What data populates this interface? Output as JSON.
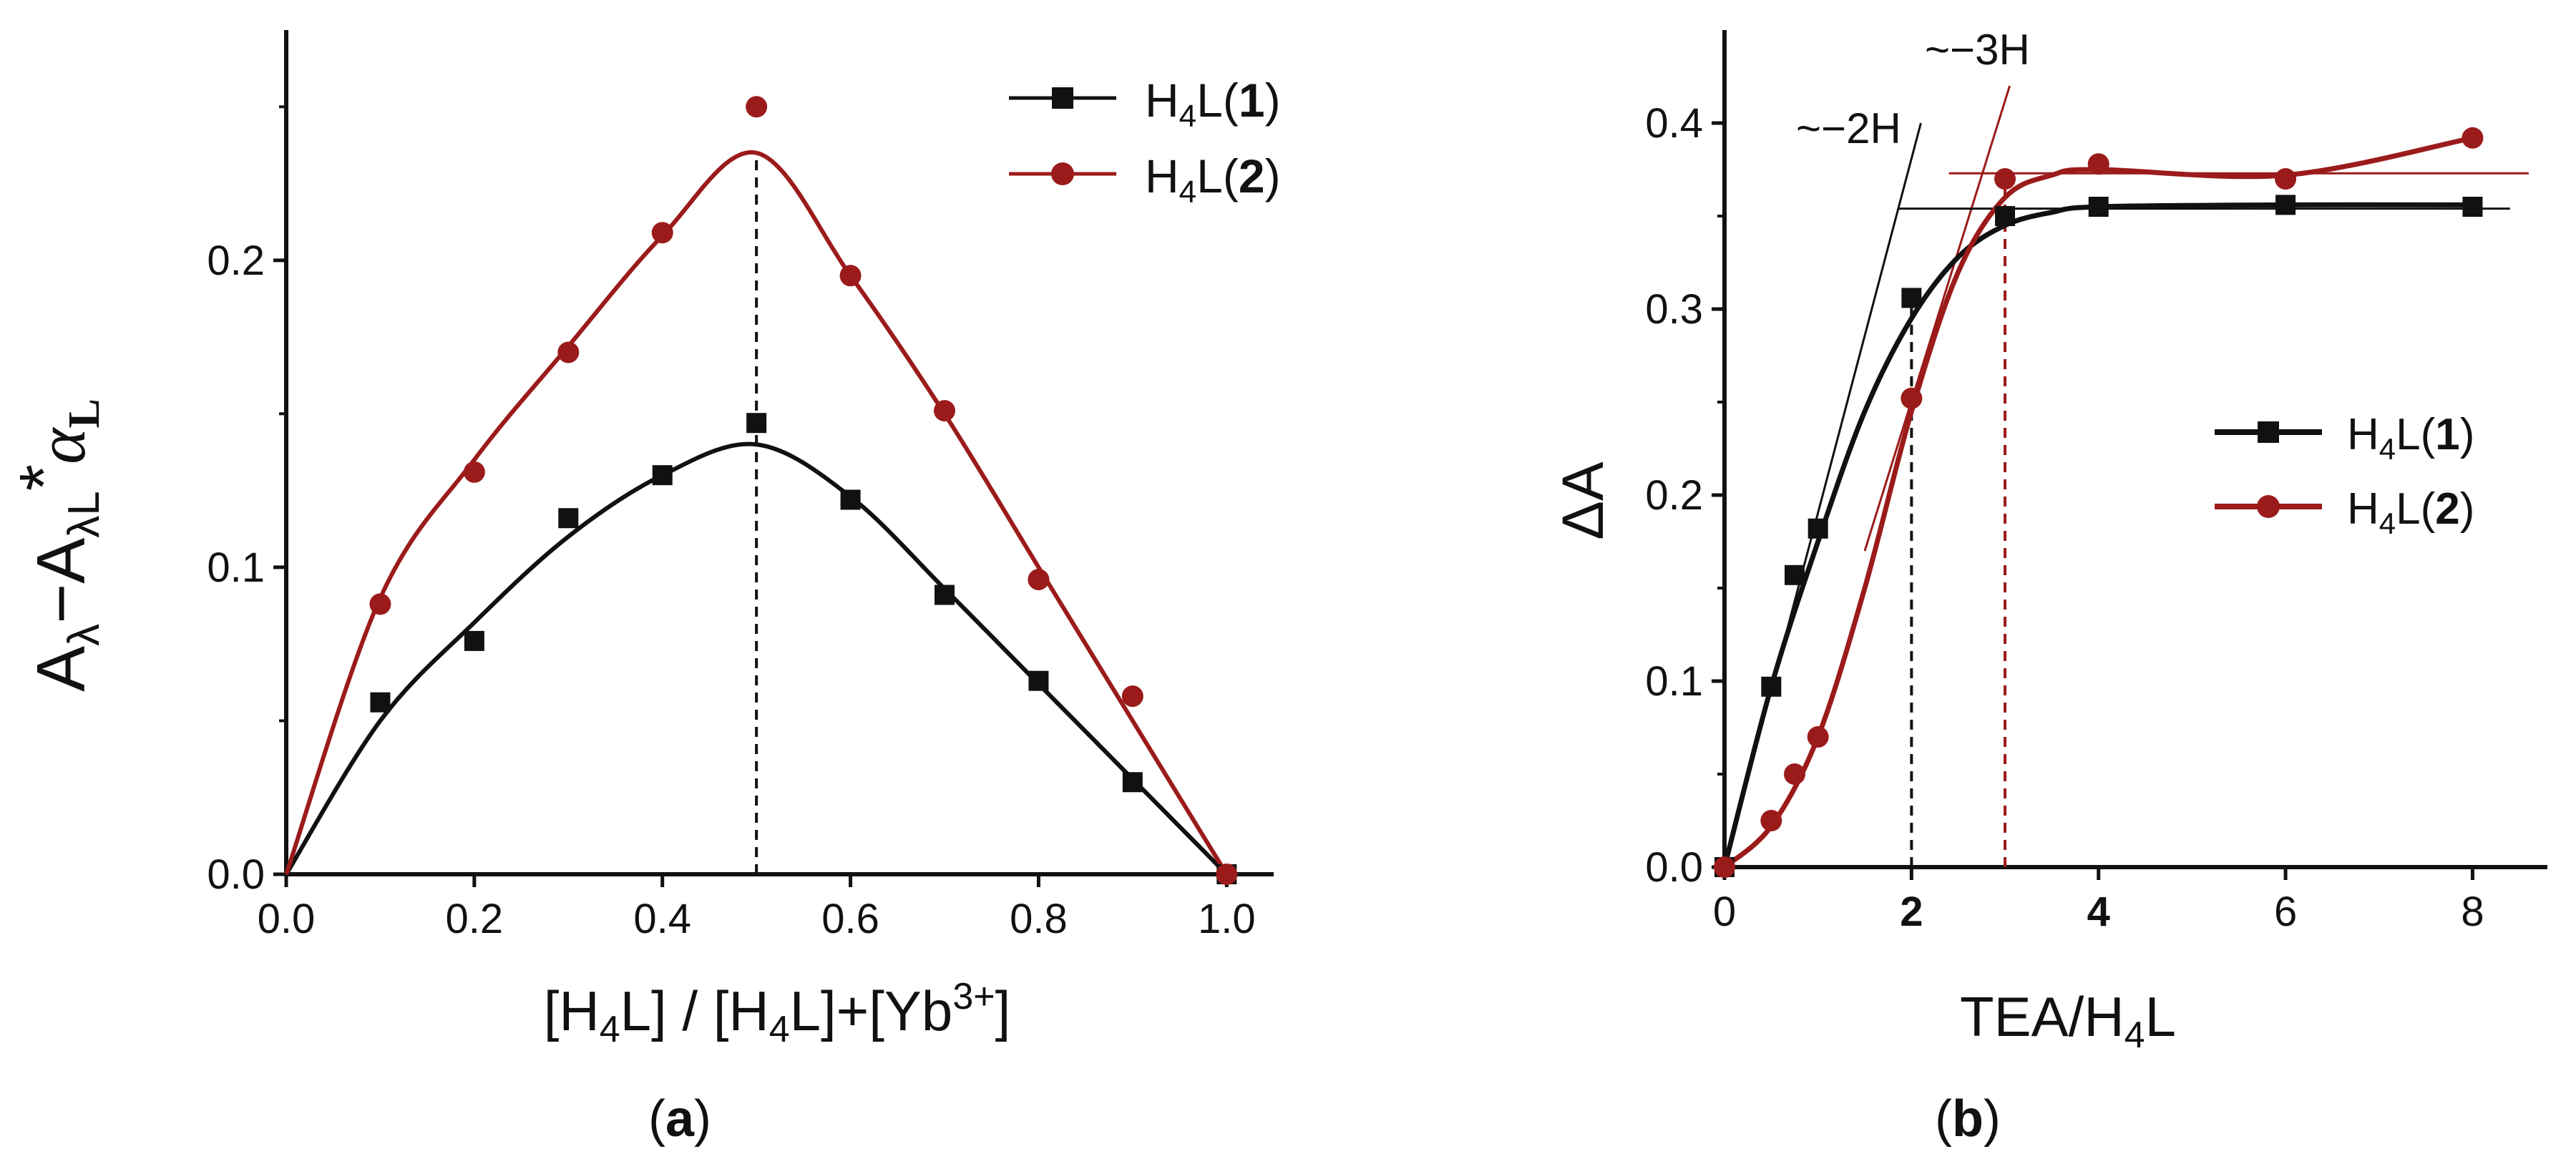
{
  "colors": {
    "series1": "#111111",
    "series2": "#9b1b1b",
    "axis": "#111111"
  },
  "panel_labels": {
    "a": "a",
    "b": "b"
  },
  "chart_data": [
    {
      "type": "scatter",
      "panel": "a",
      "xlabel_parts": {
        "p1": "[H",
        "p2": "4",
        "p3": "L] / [H",
        "p4": "4",
        "p5": "L]+[Yb",
        "p6": "3+",
        "p7": "]"
      },
      "ylabel_parts": {
        "p1": "A",
        "p2": "λ",
        "p3": "−A",
        "p4": "λL",
        "p5": "*",
        "p6": "α",
        "p7": "L"
      },
      "xlim": [
        0,
        1.05
      ],
      "ylim": [
        0,
        0.275
      ],
      "xticks": [
        "0.0",
        "0.2",
        "0.4",
        "0.6",
        "0.8",
        "1.0"
      ],
      "yticks": [
        "0.0",
        "0.1",
        "0.2"
      ],
      "legend_position": "top-right",
      "annotations": [
        {
          "type": "dashed-vertical",
          "x": 0.5
        }
      ],
      "series": [
        {
          "name_parts": {
            "p1": "H",
            "p2": "4",
            "p3": "L(",
            "p4": "1",
            "p5": ")"
          },
          "marker": "square",
          "x": [
            0.1,
            0.2,
            0.3,
            0.4,
            0.5,
            0.6,
            0.7,
            0.8,
            0.9,
            1.0
          ],
          "y": [
            0.056,
            0.076,
            0.116,
            0.13,
            0.147,
            0.122,
            0.091,
            0.063,
            0.03,
            0.0
          ],
          "fit": [
            [
              0,
              0
            ],
            [
              0.1,
              0.05
            ],
            [
              0.2,
              0.082
            ],
            [
              0.3,
              0.11
            ],
            [
              0.4,
              0.13
            ],
            [
              0.5,
              0.14
            ],
            [
              0.6,
              0.123
            ],
            [
              0.7,
              0.093
            ],
            [
              0.8,
              0.062
            ],
            [
              0.9,
              0.031
            ],
            [
              1.0,
              0.0
            ]
          ]
        },
        {
          "name_parts": {
            "p1": "H",
            "p2": "4",
            "p3": "L(",
            "p4": "2",
            "p5": ")"
          },
          "marker": "circle",
          "x": [
            0.1,
            0.2,
            0.3,
            0.4,
            0.5,
            0.6,
            0.7,
            0.8,
            0.9,
            1.0
          ],
          "y": [
            0.088,
            0.131,
            0.17,
            0.209,
            0.25,
            0.195,
            0.151,
            0.096,
            0.058,
            0.0
          ],
          "fit": [
            [
              0,
              0
            ],
            [
              0.1,
              0.09
            ],
            [
              0.2,
              0.135
            ],
            [
              0.3,
              0.172
            ],
            [
              0.4,
              0.208
            ],
            [
              0.5,
              0.235
            ],
            [
              0.6,
              0.195
            ],
            [
              0.7,
              0.15
            ],
            [
              0.8,
              0.1
            ],
            [
              0.9,
              0.05
            ],
            [
              1.0,
              0.0
            ]
          ]
        }
      ]
    },
    {
      "type": "scatter",
      "panel": "b",
      "xlabel_parts": {
        "p1": "TEA/H",
        "p2": "4",
        "p3": "L"
      },
      "ylabel": "ΔA",
      "xlim": [
        0,
        8.8
      ],
      "ylim": [
        0,
        0.45
      ],
      "xticks": [
        {
          "value": 0,
          "label": "0",
          "bold": false
        },
        {
          "value": 2,
          "label": "2",
          "bold": true
        },
        {
          "value": 4,
          "label": "4",
          "bold": true
        },
        {
          "value": 6,
          "label": "6",
          "bold": false
        },
        {
          "value": 8,
          "label": "8",
          "bold": false
        }
      ],
      "yticks": [
        "0.0",
        "0.1",
        "0.2",
        "0.3",
        "0.4"
      ],
      "legend_position": "center-right",
      "annotations": [
        {
          "text": "~−2H",
          "tangent_from": [
            0,
            0
          ],
          "tangent_to": [
            2.1,
            0.4
          ]
        },
        {
          "text": "~−3H",
          "tangent_from": [
            1.5,
            0.17
          ],
          "tangent_to": [
            3.05,
            0.42
          ]
        },
        {
          "type": "dashed-vertical",
          "x": 2,
          "to_y": 0.305
        },
        {
          "type": "dashed-vertical",
          "x": 3,
          "to_y": 0.368
        },
        {
          "type": "plateau",
          "series": 1,
          "y": 0.354,
          "x": [
            1.85,
            8.4
          ]
        },
        {
          "type": "plateau",
          "series": 2,
          "y": 0.373,
          "x": [
            2.4,
            8.6
          ]
        }
      ],
      "series": [
        {
          "name_parts": {
            "p1": "H",
            "p2": "4",
            "p3": "L(",
            "p4": "1",
            "p5": ")"
          },
          "marker": "square",
          "x": [
            0,
            0.5,
            0.75,
            1.0,
            2.0,
            3.0,
            4.0,
            6.0,
            8.0
          ],
          "y": [
            0.0,
            0.097,
            0.157,
            0.182,
            0.306,
            0.35,
            0.355,
            0.356,
            0.355
          ],
          "fit": [
            [
              0,
              0
            ],
            [
              0.5,
              0.097
            ],
            [
              1.0,
              0.175
            ],
            [
              1.5,
              0.245
            ],
            [
              2.0,
              0.295
            ],
            [
              2.5,
              0.328
            ],
            [
              3.0,
              0.345
            ],
            [
              3.5,
              0.352
            ],
            [
              4.0,
              0.355
            ],
            [
              6.0,
              0.356
            ],
            [
              8.0,
              0.356
            ]
          ]
        },
        {
          "name_parts": {
            "p1": "H",
            "p2": "4",
            "p3": "L(",
            "p4": "2",
            "p5": ")"
          },
          "marker": "circle",
          "x": [
            0,
            0.5,
            0.75,
            1.0,
            2.0,
            3.0,
            4.0,
            6.0,
            8.0
          ],
          "y": [
            0.0,
            0.025,
            0.05,
            0.07,
            0.252,
            0.37,
            0.378,
            0.37,
            0.392
          ],
          "fit": [
            [
              0,
              0
            ],
            [
              0.5,
              0.022
            ],
            [
              1.0,
              0.07
            ],
            [
              1.5,
              0.15
            ],
            [
              2.0,
              0.245
            ],
            [
              2.5,
              0.32
            ],
            [
              3.0,
              0.36
            ],
            [
              3.5,
              0.372
            ],
            [
              4.0,
              0.375
            ],
            [
              6.0,
              0.372
            ],
            [
              8.0,
              0.392
            ]
          ]
        }
      ]
    }
  ]
}
